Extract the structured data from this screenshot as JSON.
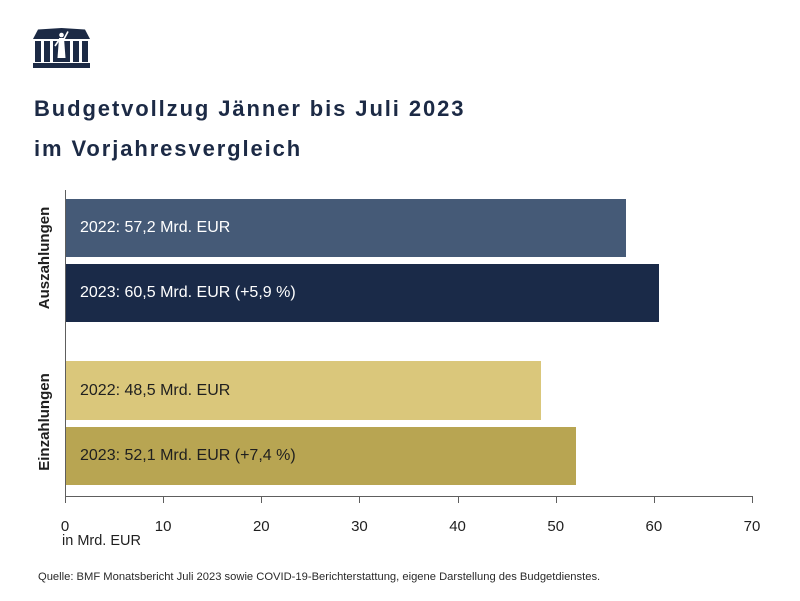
{
  "logo": {
    "icon": "parliament-building-icon"
  },
  "theme": {
    "primary": "#1c2a45",
    "axis": "#5e5e5e"
  },
  "chart_data": {
    "type": "bar",
    "orientation": "horizontal",
    "title": [
      "Budgetvollzug Jänner bis Juli 2023",
      "im Vorjahresvergleich"
    ],
    "categories": [
      "Auszahlungen",
      "Einzahlungen"
    ],
    "series": [
      {
        "values": [
          57.2,
          48.5
        ],
        "labels": [
          "2022: 57,2 Mrd. EUR",
          "2022: 48,5 Mrd. EUR"
        ],
        "colors": [
          "#455a77",
          "#dac77b"
        ],
        "label_colors": [
          "#ffffff",
          "#1f1f1f"
        ]
      },
      {
        "values": [
          60.5,
          52.1
        ],
        "labels": [
          "2023: 60,5 Mrd. EUR (+5,9 %)",
          "2023: 52,1 Mrd. EUR (+7,4 %)"
        ],
        "colors": [
          "#1a2a48",
          "#b8a552"
        ],
        "label_colors": [
          "#ffffff",
          "#1f1f1f"
        ]
      }
    ],
    "xlabel": "in Mrd. EUR",
    "xlim": [
      0,
      70
    ],
    "xticks": [
      0,
      10,
      20,
      30,
      40,
      50,
      60,
      70
    ],
    "grid": false
  },
  "source": "Quelle: BMF Monatsbericht Juli 2023 sowie COVID-19-Berichterstattung, eigene Darstellung des Budgetdienstes."
}
